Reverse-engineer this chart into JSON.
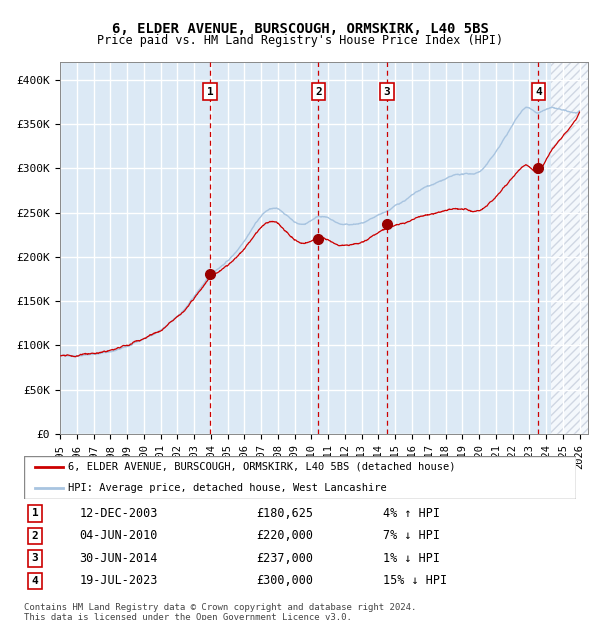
{
  "title1": "6, ELDER AVENUE, BURSCOUGH, ORMSKIRK, L40 5BS",
  "title2": "Price paid vs. HM Land Registry's House Price Index (HPI)",
  "ylabel_ticks": [
    "£0",
    "£50K",
    "£100K",
    "£150K",
    "£200K",
    "£250K",
    "£300K",
    "£350K",
    "£400K"
  ],
  "ylabel_values": [
    0,
    50000,
    100000,
    150000,
    200000,
    250000,
    300000,
    350000,
    400000
  ],
  "ylim": [
    0,
    420000
  ],
  "xlim_start": 1995.0,
  "xlim_end": 2026.5,
  "hpi_color": "#a8c4e0",
  "price_color": "#cc0000",
  "sale_marker_color": "#990000",
  "vline_color": "#cc0000",
  "bg_color": "#dce9f5",
  "hatch_color": "#c0c8d8",
  "grid_color": "#ffffff",
  "legend1": "6, ELDER AVENUE, BURSCOUGH, ORMSKIRK, L40 5BS (detached house)",
  "legend2": "HPI: Average price, detached house, West Lancashire",
  "sales": [
    {
      "num": 1,
      "date_str": "12-DEC-2003",
      "price": 180625,
      "pct": "4%",
      "dir": "↑",
      "year": 2003.95
    },
    {
      "num": 2,
      "date_str": "04-JUN-2010",
      "price": 220000,
      "pct": "7%",
      "dir": "↓",
      "year": 2010.42
    },
    {
      "num": 3,
      "date_str": "30-JUN-2014",
      "price": 237000,
      "pct": "1%",
      "dir": "↓",
      "year": 2014.5
    },
    {
      "num": 4,
      "date_str": "19-JUL-2023",
      "price": 300000,
      "pct": "15%",
      "dir": "↓",
      "year": 2023.54
    }
  ],
  "footnote1": "Contains HM Land Registry data © Crown copyright and database right 2024.",
  "footnote2": "This data is licensed under the Open Government Licence v3.0.",
  "x_tick_years": [
    1995,
    1996,
    1997,
    1998,
    1999,
    2000,
    2001,
    2002,
    2003,
    2004,
    2005,
    2006,
    2007,
    2008,
    2009,
    2010,
    2011,
    2012,
    2013,
    2014,
    2015,
    2016,
    2017,
    2018,
    2019,
    2020,
    2021,
    2022,
    2023,
    2024,
    2025,
    2026
  ]
}
